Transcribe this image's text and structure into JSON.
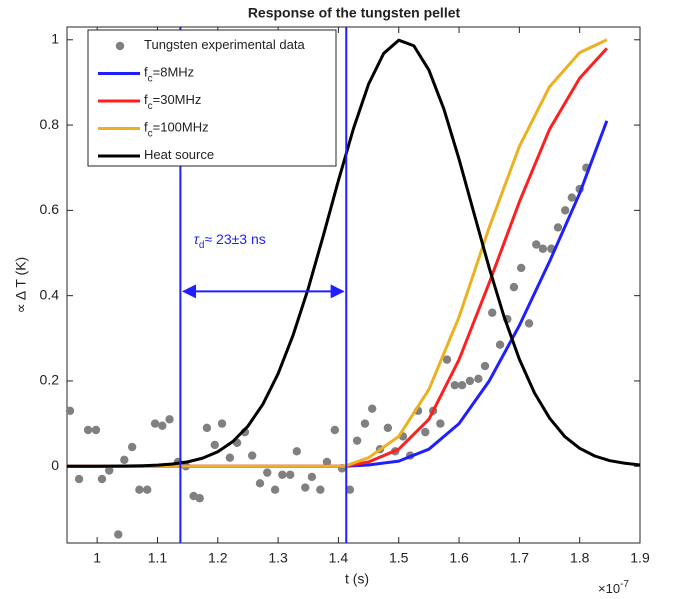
{
  "chart_data": {
    "type": "line",
    "title": "Response of the tungsten pellet",
    "xlabel": "t (s)",
    "ylabel": "∝ Δ T (K)",
    "x_multiplier": "×10",
    "x_exponent": "-7",
    "xlim": [
      0.95,
      1.9
    ],
    "ylim": [
      -0.18,
      1.03
    ],
    "xticks": [
      1,
      1.1,
      1.2,
      1.3,
      1.4,
      1.5,
      1.6,
      1.7,
      1.8,
      1.9
    ],
    "yticks": [
      0,
      0.2,
      0.4,
      0.6,
      0.8,
      1
    ],
    "grid": false,
    "legend": "upper left",
    "series": [
      {
        "name": [
          "Tungsten experimental data"
        ],
        "type": "scatter",
        "color": "#808080",
        "x": [
          0.955,
          0.97,
          0.985,
          0.998,
          1.008,
          1.02,
          1.035,
          1.045,
          1.058,
          1.07,
          1.083,
          1.096,
          1.108,
          1.12,
          1.134,
          1.147,
          1.16,
          1.17,
          1.182,
          1.195,
          1.207,
          1.22,
          1.232,
          1.245,
          1.257,
          1.27,
          1.282,
          1.295,
          1.307,
          1.32,
          1.331,
          1.345,
          1.356,
          1.37,
          1.381,
          1.394,
          1.406,
          1.419,
          1.431,
          1.444,
          1.456,
          1.469,
          1.482,
          1.494,
          1.507,
          1.519,
          1.532,
          1.544,
          1.557,
          1.569,
          1.58,
          1.593,
          1.605,
          1.618,
          1.632,
          1.643,
          1.655,
          1.668,
          1.68,
          1.691,
          1.703,
          1.716,
          1.728,
          1.739,
          1.753,
          1.764,
          1.776,
          1.787,
          1.8,
          1.811
        ],
        "values": [
          0.13,
          -0.03,
          0.085,
          0.085,
          -0.03,
          -0.01,
          -0.16,
          0.015,
          0.045,
          -0.055,
          -0.055,
          0.1,
          0.095,
          0.11,
          0.01,
          0,
          -0.07,
          -0.075,
          0.09,
          0.05,
          0.1,
          0.02,
          0.055,
          0.08,
          0.025,
          -0.04,
          -0.015,
          -0.055,
          -0.02,
          -0.02,
          0.035,
          -0.05,
          -0.025,
          -0.055,
          0.01,
          0.085,
          -0.005,
          -0.055,
          0.06,
          0.1,
          0.135,
          0.04,
          0.09,
          0.035,
          0.07,
          0.025,
          0.13,
          0.08,
          0.13,
          0.1,
          0.25,
          0.19,
          0.19,
          0.2,
          0.205,
          0.235,
          0.36,
          0.285,
          0.345,
          0.42,
          0.465,
          0.335,
          0.52,
          0.51,
          0.51,
          0.56,
          0.6,
          0.63,
          0.65,
          0.7
        ]
      },
      {
        "name": [
          "f",
          "c",
          "=8MHz"
        ],
        "type": "line",
        "color": "#1f1fff",
        "x": [
          0.95,
          1.41,
          1.45,
          1.5,
          1.55,
          1.6,
          1.65,
          1.7,
          1.75,
          1.8,
          1.845
        ],
        "values": [
          0,
          0,
          0.003,
          0.012,
          0.04,
          0.1,
          0.2,
          0.33,
          0.48,
          0.64,
          0.81
        ]
      },
      {
        "name": [
          "f",
          "c",
          "=30MHz"
        ],
        "type": "line",
        "color": "#ff1f1f",
        "x": [
          0.95,
          1.41,
          1.45,
          1.5,
          1.55,
          1.6,
          1.65,
          1.7,
          1.75,
          1.8,
          1.845
        ],
        "values": [
          0,
          0,
          0.01,
          0.04,
          0.11,
          0.25,
          0.43,
          0.62,
          0.79,
          0.91,
          0.98
        ]
      },
      {
        "name": [
          "f",
          "c",
          "=100MHz"
        ],
        "type": "line",
        "color": "#edb120",
        "x": [
          0.95,
          1.41,
          1.45,
          1.5,
          1.55,
          1.6,
          1.65,
          1.7,
          1.75,
          1.8,
          1.845
        ],
        "values": [
          0,
          0,
          0.02,
          0.07,
          0.18,
          0.35,
          0.56,
          0.75,
          0.89,
          0.97,
          1.0
        ]
      },
      {
        "name": [
          "Heat source"
        ],
        "type": "line",
        "color": "#000000",
        "x": [
          0.95,
          0.975,
          1.0,
          1.025,
          1.05,
          1.075,
          1.1,
          1.125,
          1.15,
          1.175,
          1.2,
          1.225,
          1.25,
          1.275,
          1.3,
          1.325,
          1.35,
          1.375,
          1.4,
          1.425,
          1.45,
          1.475,
          1.5,
          1.525,
          1.55,
          1.575,
          1.6,
          1.625,
          1.65,
          1.675,
          1.7,
          1.725,
          1.75,
          1.775,
          1.8,
          1.825,
          1.85,
          1.875,
          1.9
        ],
        "values": [
          0,
          0,
          0.0001,
          0.0002,
          0.0005,
          0.0012,
          0.0026,
          0.0052,
          0.0102,
          0.019,
          0.034,
          0.058,
          0.094,
          0.146,
          0.217,
          0.308,
          0.417,
          0.541,
          0.67,
          0.792,
          0.896,
          0.968,
          0.999,
          0.986,
          0.929,
          0.837,
          0.72,
          0.592,
          0.465,
          0.349,
          0.251,
          0.172,
          0.113,
          0.07,
          0.042,
          0.024,
          0.013,
          0.007,
          0.003
        ]
      }
    ],
    "markers": {
      "color": "#1f1fff",
      "x": [
        1.138,
        1.413
      ],
      "arrow_y": 0.41
    },
    "annotation": {
      "symbol": "τ",
      "sub": "d",
      "text": "≈ 23±3 ns",
      "x": 1.16,
      "y": 0.53
    }
  }
}
